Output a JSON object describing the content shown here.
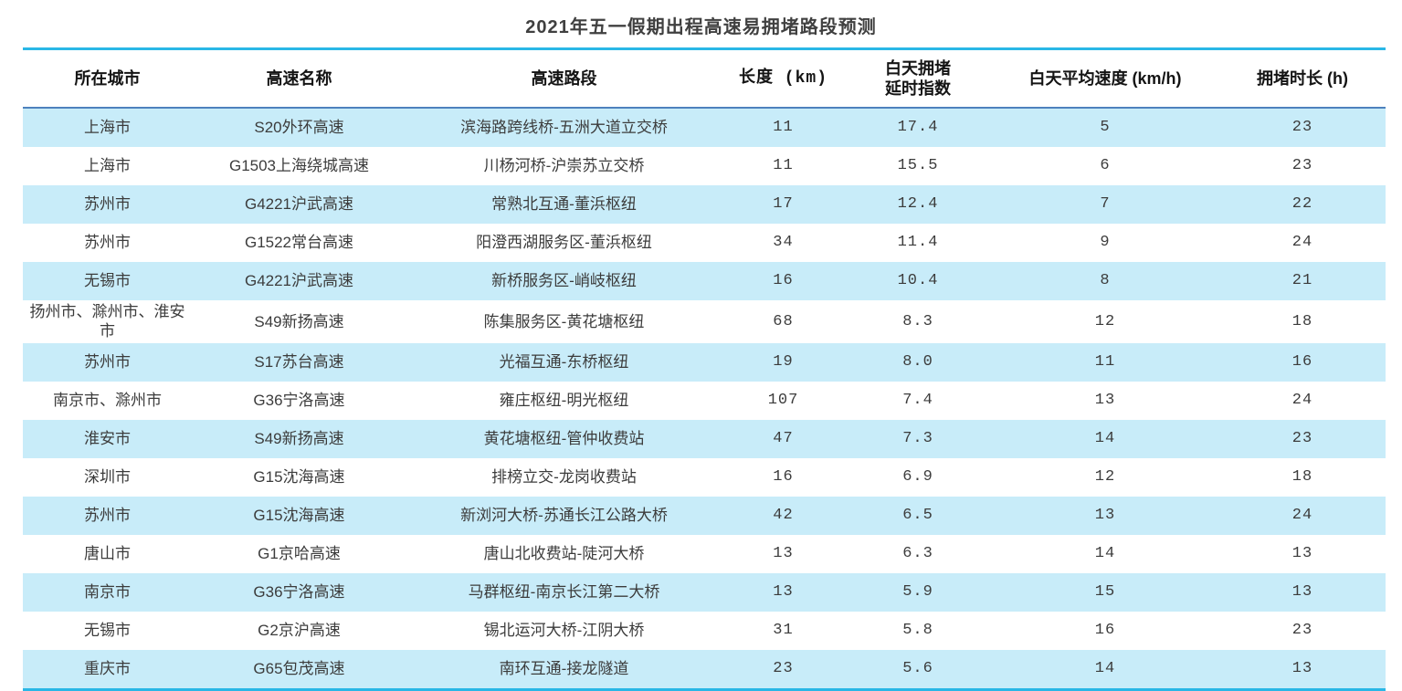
{
  "page": {
    "title": "2021年五一假期出程高速易拥堵路段预测"
  },
  "colors": {
    "accent_cyan_border": "#29b7e6",
    "header_rule_blue": "#4e81bd",
    "row_stripe_blue": "#c8ecf9",
    "header_text": "#141414",
    "body_text": "#3c3c3c",
    "title_text": "#404040"
  },
  "chart_data": {
    "type": "table",
    "title": "2021年五一假期出程高速易拥堵路段预测",
    "columns": [
      "所在城市",
      "高速名称",
      "高速路段",
      "长度 (km)",
      "白天拥堵\n延时指数",
      "白天平均速度 (km/h)",
      "拥堵时长 (h)"
    ],
    "rows": [
      [
        "上海市",
        "S20外环高速",
        "滨海路跨线桥-五洲大道立交桥",
        "11",
        "17.4",
        "5",
        "23"
      ],
      [
        "上海市",
        "G1503上海绕城高速",
        "川杨河桥-沪崇苏立交桥",
        "11",
        "15.5",
        "6",
        "23"
      ],
      [
        "苏州市",
        "G4221沪武高速",
        "常熟北互通-董浜枢纽",
        "17",
        "12.4",
        "7",
        "22"
      ],
      [
        "苏州市",
        "G1522常台高速",
        "阳澄西湖服务区-董浜枢纽",
        "34",
        "11.4",
        "9",
        "24"
      ],
      [
        "无锡市",
        "G4221沪武高速",
        "新桥服务区-峭岐枢纽",
        "16",
        "10.4",
        "8",
        "21"
      ],
      [
        "扬州市、滁州市、淮安市",
        "S49新扬高速",
        "陈集服务区-黄花塘枢纽",
        "68",
        "8.3",
        "12",
        "18"
      ],
      [
        "苏州市",
        "S17苏台高速",
        "光福互通-东桥枢纽",
        "19",
        "8.0",
        "11",
        "16"
      ],
      [
        "南京市、滁州市",
        "G36宁洛高速",
        "雍庄枢纽-明光枢纽",
        "107",
        "7.4",
        "13",
        "24"
      ],
      [
        "淮安市",
        "S49新扬高速",
        "黄花塘枢纽-管仲收费站",
        "47",
        "7.3",
        "14",
        "23"
      ],
      [
        "深圳市",
        "G15沈海高速",
        "排榜立交-龙岗收费站",
        "16",
        "6.9",
        "12",
        "18"
      ],
      [
        "苏州市",
        "G15沈海高速",
        "新浏河大桥-苏通长江公路大桥",
        "42",
        "6.5",
        "13",
        "24"
      ],
      [
        "唐山市",
        "G1京哈高速",
        "唐山北收费站-陡河大桥",
        "13",
        "6.3",
        "14",
        "13"
      ],
      [
        "南京市",
        "G36宁洛高速",
        "马群枢纽-南京长江第二大桥",
        "13",
        "5.9",
        "15",
        "13"
      ],
      [
        "无锡市",
        "G2京沪高速",
        "锡北运河大桥-江阴大桥",
        "31",
        "5.8",
        "16",
        "23"
      ],
      [
        "重庆市",
        "G65包茂高速",
        "南环互通-接龙隧道",
        "23",
        "5.6",
        "14",
        "13"
      ]
    ]
  }
}
